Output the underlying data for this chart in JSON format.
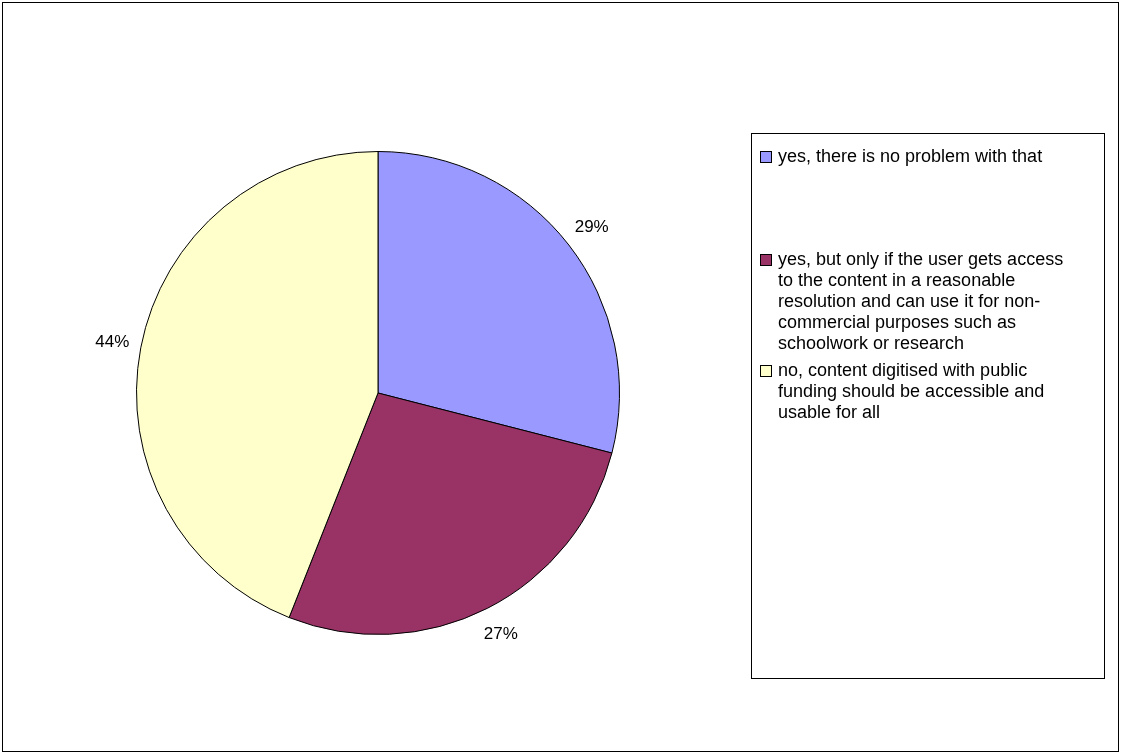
{
  "chart_data": {
    "type": "pie",
    "categories": [
      "yes, there is no problem with that",
      "yes, but only if the user gets access to the content in a reasonable resolution and can use it for non-commercial purposes such as schoolwork or research",
      "no, content digitised with public funding should be accessible and usable for all"
    ],
    "values": [
      29,
      27,
      44
    ],
    "colors": [
      "#9999ff",
      "#993366",
      "#ffffcc"
    ],
    "value_labels": [
      "29%",
      "27%",
      "44%"
    ],
    "legend": "right"
  }
}
